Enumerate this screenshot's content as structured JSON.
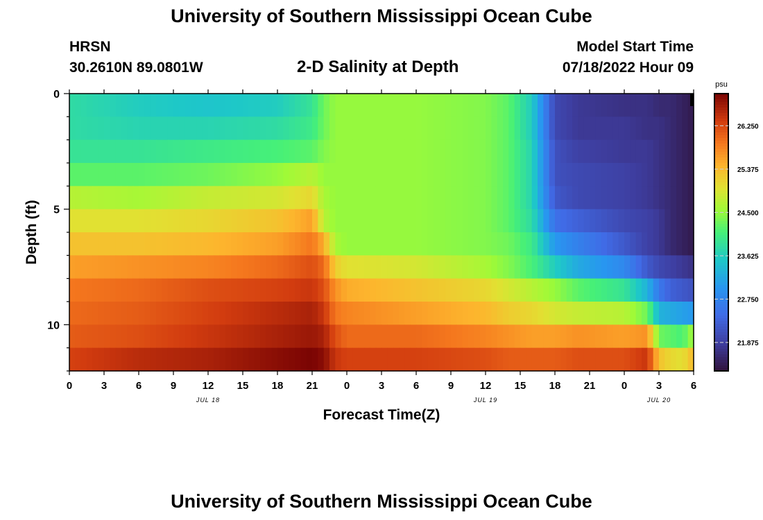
{
  "header": {
    "title": "University of Southern Mississippi Ocean Cube",
    "station": "HRSN",
    "coordinates": "30.2610N  89.0801W",
    "plot_title": "2-D Salinity at Depth",
    "model_label": "Model Start Time",
    "model_time": "07/18/2022 Hour 09"
  },
  "footer": {
    "title": "University of Southern Mississippi Ocean Cube"
  },
  "chart_data": {
    "type": "heatmap",
    "title": "2-D Salinity at Depth",
    "xlabel": "Forecast Time(Z)",
    "ylabel": "Depth (ft)",
    "x_tick_labels": [
      "0",
      "3",
      "6",
      "9",
      "12",
      "15",
      "18",
      "21",
      "0",
      "3",
      "6",
      "9",
      "12",
      "15",
      "18",
      "21",
      "0",
      "3",
      "6"
    ],
    "x_range_hours": [
      0,
      54
    ],
    "date_labels": [
      {
        "text": "JUL 18",
        "hour": 12
      },
      {
        "text": "JUL 19",
        "hour": 36
      },
      {
        "text": "JUL 20",
        "hour": 51
      }
    ],
    "y_ticks": [
      0,
      5,
      10
    ],
    "y_range_ft": [
      0,
      12
    ],
    "depth_levels_ft": [
      0.5,
      1.5,
      2.5,
      3.5,
      4.5,
      5.5,
      6.5,
      7.5,
      8.5,
      9.5,
      10.5,
      11.5
    ],
    "colorbar": {
      "unit": "psu",
      "tick_labels": [
        "26.250",
        "25.375",
        "24.500",
        "23.625",
        "22.750",
        "21.875"
      ],
      "tick_values": [
        26.25,
        25.375,
        24.5,
        23.625,
        22.75,
        21.875
      ],
      "range": [
        21.3,
        26.9
      ]
    },
    "time_hours": [
      0,
      6,
      12,
      18,
      21,
      22,
      23,
      24,
      30,
      36,
      38,
      40,
      42,
      44,
      48,
      50,
      51,
      52,
      53,
      54
    ],
    "salinity_psu": [
      [
        23.8,
        23.6,
        23.5,
        23.6,
        23.9,
        24.3,
        24.5,
        24.5,
        24.5,
        24.4,
        24.2,
        23.6,
        22.0,
        21.8,
        21.7,
        21.7,
        21.6,
        21.6,
        21.5,
        21.4
      ],
      [
        23.8,
        23.7,
        23.7,
        23.8,
        24.0,
        24.3,
        24.5,
        24.5,
        24.5,
        24.4,
        24.2,
        23.6,
        22.0,
        21.8,
        21.8,
        21.7,
        21.7,
        21.6,
        21.5,
        21.4
      ],
      [
        23.9,
        23.9,
        24.0,
        24.1,
        24.2,
        24.4,
        24.5,
        24.5,
        24.5,
        24.4,
        24.2,
        23.7,
        22.1,
        21.9,
        21.8,
        21.8,
        21.7,
        21.6,
        21.5,
        21.4
      ],
      [
        24.2,
        24.2,
        24.3,
        24.5,
        24.7,
        24.5,
        24.5,
        24.5,
        24.5,
        24.4,
        24.2,
        23.7,
        22.1,
        22.0,
        21.9,
        21.8,
        21.7,
        21.6,
        21.5,
        21.4
      ],
      [
        24.7,
        24.6,
        24.8,
        24.9,
        25.1,
        24.6,
        24.5,
        24.5,
        24.5,
        24.4,
        24.2,
        23.7,
        22.2,
        22.0,
        21.9,
        21.8,
        21.7,
        21.6,
        21.5,
        21.4
      ],
      [
        25.0,
        25.0,
        25.1,
        25.3,
        25.6,
        24.7,
        24.5,
        24.5,
        24.5,
        24.4,
        24.2,
        23.8,
        22.5,
        22.3,
        22.0,
        21.9,
        21.8,
        21.6,
        21.5,
        21.4
      ],
      [
        25.3,
        25.3,
        25.4,
        25.6,
        25.9,
        25.5,
        24.6,
        24.5,
        24.5,
        24.4,
        24.3,
        24.0,
        23.0,
        22.7,
        22.2,
        21.9,
        21.8,
        21.6,
        21.5,
        21.4
      ],
      [
        25.6,
        25.7,
        25.8,
        26.0,
        26.2,
        26.0,
        25.2,
        25.0,
        24.9,
        24.6,
        24.4,
        24.1,
        23.6,
        23.2,
        22.8,
        22.2,
        22.0,
        21.9,
        21.8,
        21.7
      ],
      [
        25.9,
        26.0,
        26.2,
        26.3,
        26.4,
        26.2,
        25.7,
        25.5,
        25.3,
        25.1,
        24.9,
        24.7,
        24.5,
        24.2,
        23.9,
        23.3,
        22.6,
        22.3,
        22.2,
        22.1
      ],
      [
        26.0,
        26.1,
        26.3,
        26.5,
        26.6,
        26.4,
        25.9,
        25.8,
        25.6,
        25.4,
        25.2,
        25.1,
        24.9,
        24.8,
        24.7,
        24.3,
        23.3,
        23.2,
        23.1,
        23.0
      ],
      [
        26.1,
        26.2,
        26.4,
        26.6,
        26.7,
        26.6,
        26.2,
        26.0,
        26.0,
        25.8,
        25.7,
        25.6,
        25.6,
        25.7,
        25.6,
        25.7,
        24.3,
        24.2,
        24.1,
        24.6
      ],
      [
        26.3,
        26.5,
        26.6,
        26.8,
        26.9,
        26.8,
        26.4,
        26.3,
        26.3,
        26.2,
        26.1,
        26.1,
        26.1,
        26.2,
        26.2,
        26.4,
        25.3,
        25.1,
        25.0,
        25.4
      ]
    ]
  }
}
